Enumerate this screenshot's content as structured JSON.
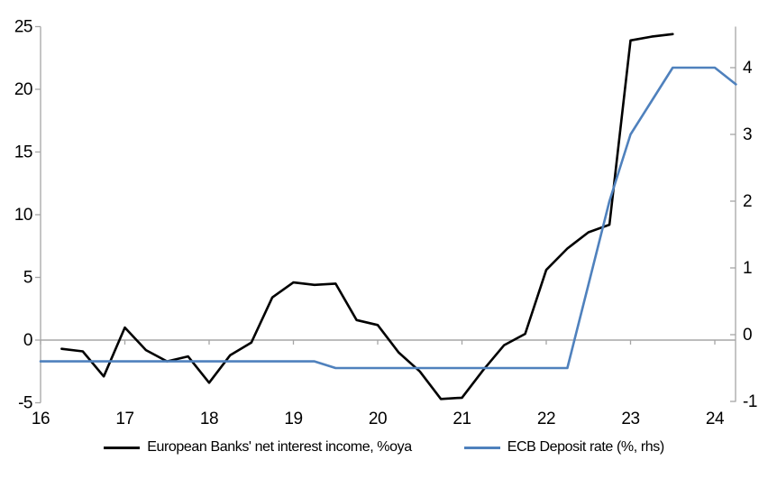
{
  "chart_data": {
    "type": "line",
    "title": "",
    "legend_position": "bottom",
    "grid": "zero-line-only",
    "x_axis": {
      "tick_labels": [
        16,
        17,
        18,
        19,
        20,
        21,
        22,
        23,
        24
      ],
      "range": [
        16,
        24.28
      ]
    },
    "left_y_axis": {
      "tick_labels": [
        25,
        20,
        15,
        10,
        5,
        0,
        -5
      ],
      "range": [
        -5,
        25
      ]
    },
    "right_y_axis": {
      "tick_labels": [
        4,
        3,
        2,
        1,
        0,
        -1
      ],
      "range": [
        -1,
        4.6
      ]
    },
    "series": [
      {
        "name": "European Banks' net interest income, %oya",
        "axis": "left",
        "color": "#000000",
        "x": [
          16.25,
          16.5,
          16.75,
          17,
          17.25,
          17.5,
          17.75,
          18,
          18.25,
          18.5,
          18.75,
          19,
          19.25,
          19.5,
          19.75,
          20,
          20.25,
          20.5,
          20.75,
          21,
          21.25,
          21.5,
          21.75,
          22,
          22.25,
          22.5,
          22.75,
          23,
          23.25,
          23.5
        ],
        "values": [
          -0.7,
          -0.9,
          -2.9,
          1.0,
          -0.8,
          -1.7,
          -1.3,
          -3.4,
          -1.2,
          -0.2,
          3.4,
          4.6,
          4.4,
          4.5,
          1.6,
          1.2,
          -1.0,
          -2.5,
          -4.7,
          -4.6,
          -2.4,
          -0.4,
          0.5,
          5.6,
          7.3,
          8.6,
          9.2,
          23.9,
          24.2,
          24.4
        ]
      },
      {
        "name": "ECB Deposit rate (%, rhs)",
        "axis": "right",
        "color": "#4f81bd",
        "x": [
          16,
          16.25,
          16.5,
          16.75,
          17,
          17.25,
          17.5,
          17.75,
          18,
          18.25,
          18.5,
          18.75,
          19,
          19.25,
          19.5,
          19.75,
          20,
          20.25,
          20.5,
          20.75,
          21,
          21.25,
          21.5,
          21.75,
          22,
          22.25,
          22.5,
          22.75,
          23,
          23.25,
          23.5,
          23.75,
          24,
          24.25
        ],
        "values": [
          -0.4,
          -0.4,
          -0.4,
          -0.4,
          -0.4,
          -0.4,
          -0.4,
          -0.4,
          -0.4,
          -0.4,
          -0.4,
          -0.4,
          -0.4,
          -0.4,
          -0.5,
          -0.5,
          -0.5,
          -0.5,
          -0.5,
          -0.5,
          -0.5,
          -0.5,
          -0.5,
          -0.5,
          -0.5,
          -0.5,
          0.75,
          2.0,
          3.0,
          3.5,
          4.0,
          4.0,
          4.0,
          3.75
        ]
      }
    ]
  },
  "colors": {
    "axis": "#a6a6a6",
    "background": "#ffffff",
    "series_black": "#000000",
    "series_blue": "#4f81bd"
  }
}
